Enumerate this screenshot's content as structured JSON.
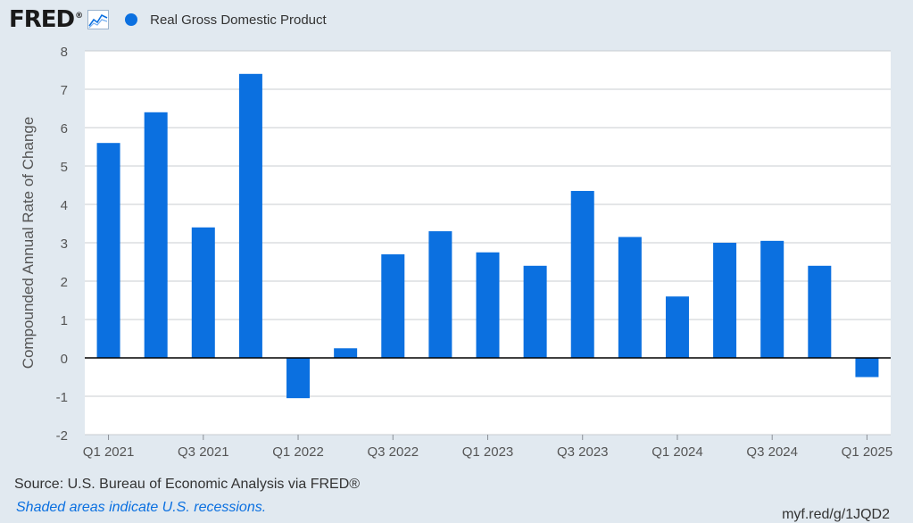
{
  "header": {
    "logo_text": "FRED",
    "logo_reg": "®",
    "logo_icon": "line-graph-icon"
  },
  "chart_data": {
    "type": "bar",
    "title": "",
    "xlabel": "",
    "ylabel": "Compounded Annual Rate of Change",
    "ylim": [
      -2,
      8
    ],
    "yticks": [
      8,
      7,
      6,
      5,
      4,
      3,
      2,
      1,
      0,
      -1,
      -2
    ],
    "grid": true,
    "legend_position": "top-left",
    "categories": [
      "Q1 2021",
      "Q2 2021",
      "Q3 2021",
      "Q4 2021",
      "Q1 2022",
      "Q2 2022",
      "Q3 2022",
      "Q4 2022",
      "Q1 2023",
      "Q2 2023",
      "Q3 2023",
      "Q4 2023",
      "Q1 2024",
      "Q2 2024",
      "Q3 2024",
      "Q4 2024",
      "Q1 2025"
    ],
    "xtick_labels": [
      "Q1 2021",
      "Q3 2021",
      "Q1 2022",
      "Q3 2022",
      "Q1 2023",
      "Q3 2023",
      "Q1 2024",
      "Q3 2024",
      "Q1 2025"
    ],
    "series": [
      {
        "name": "Real Gross Domestic Product",
        "color": "#0b70e0",
        "values": [
          5.6,
          6.4,
          3.4,
          7.4,
          -1.05,
          0.25,
          2.7,
          3.3,
          2.75,
          2.4,
          4.35,
          3.15,
          1.6,
          3.0,
          3.05,
          2.4,
          -0.5
        ]
      }
    ]
  },
  "footer": {
    "source": "Source: U.S. Bureau of Economic Analysis via FRED®",
    "note": "Shaded areas indicate U.S. recessions.",
    "url": "myf.red/g/1JQD2"
  }
}
